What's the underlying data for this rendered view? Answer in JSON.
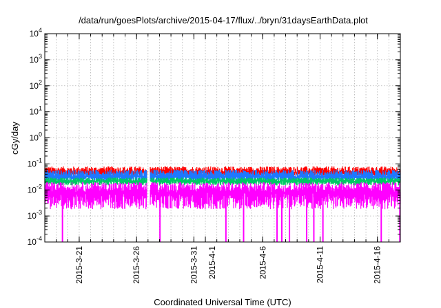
{
  "chart_data": {
    "type": "line",
    "title": "/data/run/goesPlots/archive/2015-04-17/flux/../bryn/31daysEarthData.plot",
    "xlabel": "Coordinated Universal Time (UTC)",
    "ylabel": "cGy/day",
    "y_scale": "log",
    "ylim": [
      0.0001,
      10000
    ],
    "y_ticks": [
      {
        "base": "10",
        "exp": "-4",
        "value": 0.0001
      },
      {
        "base": "10",
        "exp": "-3",
        "value": 0.001
      },
      {
        "base": "10",
        "exp": "-2",
        "value": 0.01
      },
      {
        "base": "10",
        "exp": "-1",
        "value": 0.1
      },
      {
        "base": "10",
        "exp": "0",
        "value": 1
      },
      {
        "base": "10",
        "exp": "1",
        "value": 10
      },
      {
        "base": "10",
        "exp": "2",
        "value": 100
      },
      {
        "base": "10",
        "exp": "3",
        "value": 1000
      },
      {
        "base": "10",
        "exp": "4",
        "value": 10000
      }
    ],
    "xlim": [
      "2015-03-18",
      "2015-04-18"
    ],
    "x_ticks": [
      {
        "label": "2015-3-21",
        "date": "2015-03-21"
      },
      {
        "label": "2015-3-26",
        "date": "2015-03-26"
      },
      {
        "label": "2015-3-31",
        "date": "2015-03-31"
      },
      {
        "label": "2015-4-1",
        "date": "2015-04-01"
      },
      {
        "label": "2015-4-6",
        "date": "2015-04-06"
      },
      {
        "label": "2015-4-11",
        "date": "2015-04-11"
      },
      {
        "label": "2015-4-16",
        "date": "2015-04-16"
      }
    ],
    "grid": true,
    "series": [
      {
        "color": "#ff0000",
        "typical": 0.045,
        "low": 0.035,
        "high": 0.08
      },
      {
        "color": "#1e78ff",
        "typical": 0.032,
        "low": 0.022,
        "high": 0.06
      },
      {
        "color": "#00c864",
        "typical": 0.022,
        "low": 0.015,
        "high": 0.03
      },
      {
        "color": "#ff00ff",
        "typical": 0.008,
        "low": 0.0018,
        "high": 0.02
      }
    ],
    "gaps": [
      {
        "from": "2015-03-26T22:00",
        "to": "2015-03-27T04:00"
      }
    ],
    "dropouts": [
      "2015-03-19T13:00",
      "2015-03-28T01:00",
      "2015-04-02T19:00",
      "2015-04-04T08:00",
      "2015-04-07T06:00",
      "2015-04-07T16:00",
      "2015-04-08T08:00",
      "2015-04-09T20:00",
      "2015-04-10T11:00",
      "2015-04-11T06:00",
      "2015-04-16T08:00",
      "2015-04-17T23:00"
    ]
  }
}
